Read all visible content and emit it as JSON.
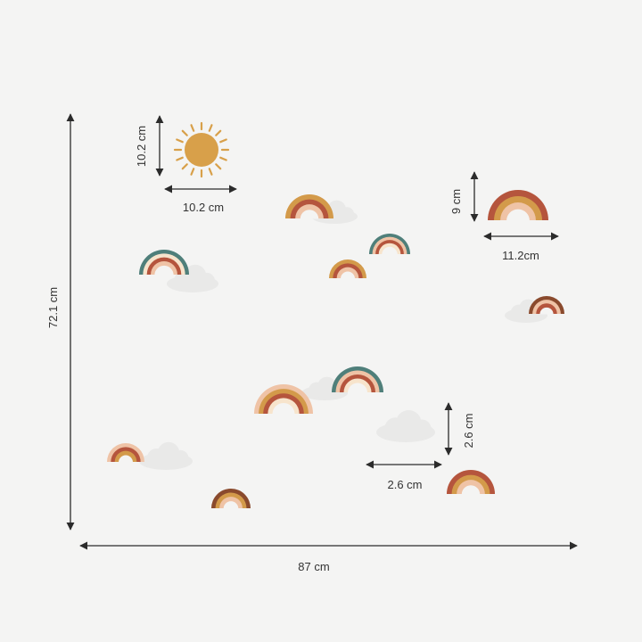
{
  "dimensions": {
    "overall_height": "72.1 cm",
    "overall_width": "87 cm",
    "sun_height": "10.2 cm",
    "sun_width": "10.2 cm",
    "large_rainbow_height": "9 cm",
    "large_rainbow_width": "11.2cm",
    "small_rainbow_height": "2.6 cm",
    "small_rainbow_width": "2.6 cm"
  },
  "palette": {
    "background": "#f4f4f3",
    "sun": "#d8a04a",
    "terracotta": "#b5553d",
    "mustard": "#d39a4a",
    "blush": "#efc3a6",
    "teal": "#4f7f7a",
    "brown": "#8a4a2d",
    "cream": "#f7e4cc",
    "cloud": "#e9e9e8"
  },
  "icons": [
    "sun-icon",
    "rainbow-icon",
    "cloud-icon",
    "arrow-icon"
  ]
}
